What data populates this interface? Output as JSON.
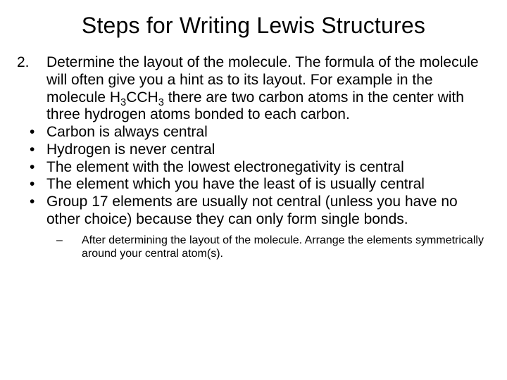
{
  "title": "Steps for Writing Lewis Structures",
  "main": {
    "number": "2.",
    "text_before_formula": "Determine the layout of the molecule.  The formula of the molecule will often give you a hint as to its layout.  For example in the molecule H",
    "sub1": "3",
    "mid": "CCH",
    "sub2": "3",
    "text_after_formula": " there are two carbon atoms in the center with three hydrogen atoms bonded to each carbon."
  },
  "bullets": [
    "Carbon is always central",
    "Hydrogen is never central",
    "The element with the lowest electronegativity is central",
    "The element which you have the least of is usually central",
    "Group 17 elements are usually not central (unless you have no other choice) because they can only form single bonds."
  ],
  "sub": {
    "marker": "–",
    "text": "After determining the layout of the molecule.  Arrange the elements symmetrically around your central atom(s)."
  },
  "bullet_marker": "•"
}
